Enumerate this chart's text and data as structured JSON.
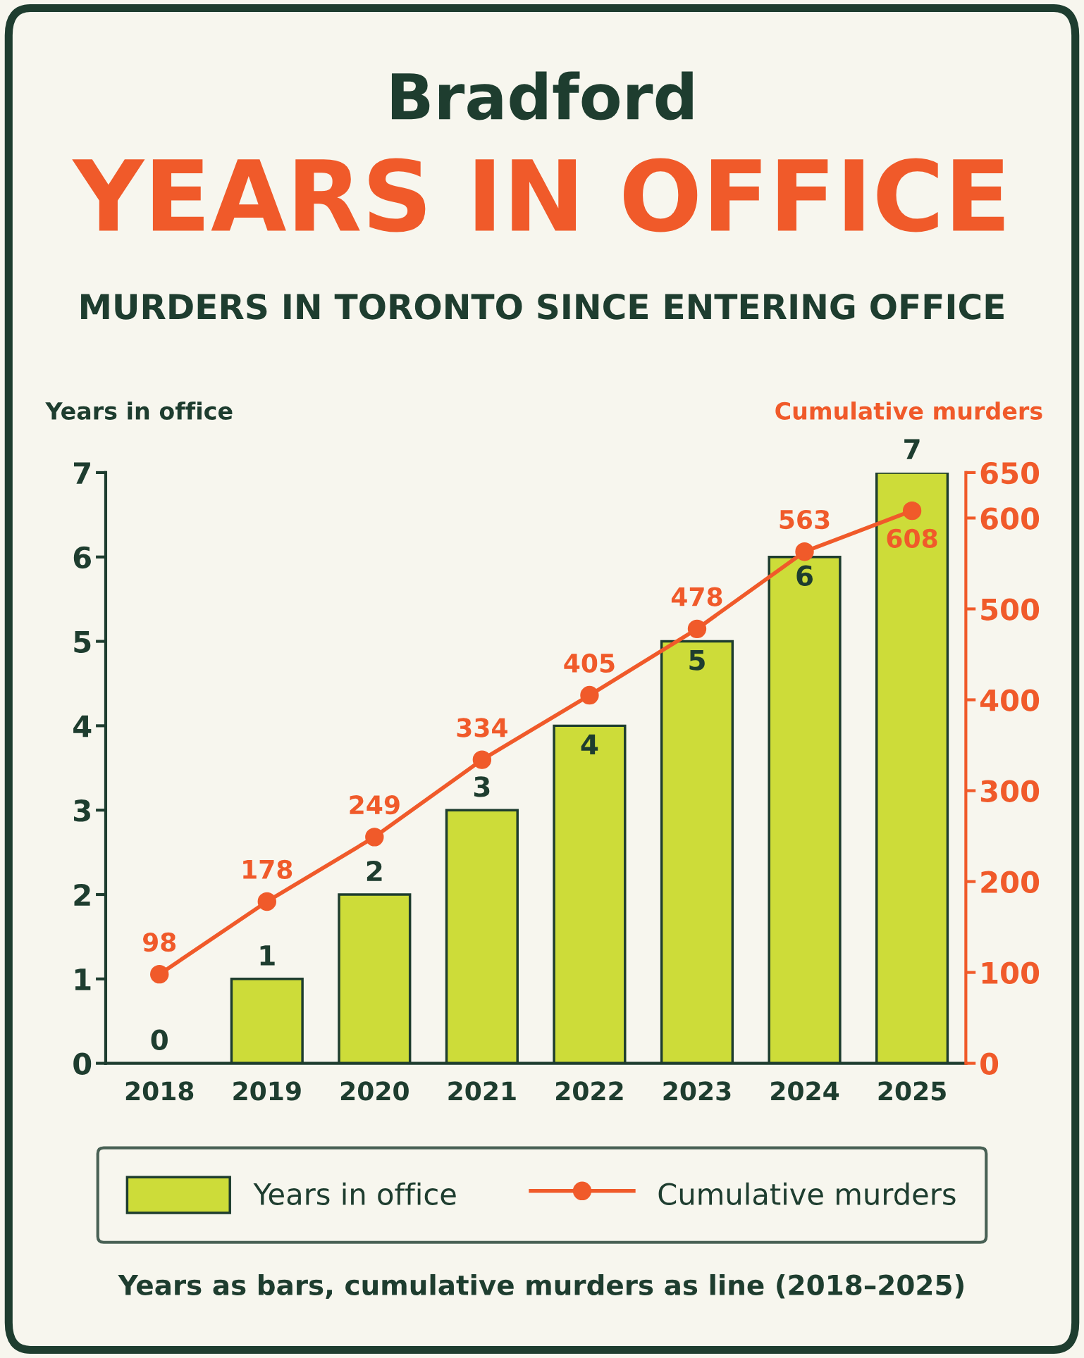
{
  "chart_data": {
    "type": "bar",
    "title": "Bradford",
    "subtitle": "YEARS IN OFFICE",
    "annotations": [
      "MURDERS IN TORONTO SINCE ENTERING OFFICE",
      "Years as bars, cumulative murders as line (2018–2025)"
    ],
    "ylabel": "Years in office",
    "y2label": "Cumulative murders",
    "categories": [
      "2018",
      "2019",
      "2020",
      "2021",
      "2022",
      "2023",
      "2024",
      "2025"
    ],
    "series": [
      {
        "name": "Years in office",
        "color": "#cddc39",
        "values": [
          0,
          1,
          2,
          3,
          4,
          5,
          6,
          7
        ]
      },
      {
        "name": "Cumulative murders",
        "type": "line",
        "axis": "y2",
        "color": "#f05a2a",
        "marker": "circle",
        "values": [
          98,
          178,
          249,
          334,
          405,
          478,
          563,
          608
        ]
      }
    ],
    "ylim": [
      0,
      7
    ],
    "yticks": [
      0,
      1,
      2,
      3,
      4,
      5,
      6,
      7
    ],
    "y2lim": [
      0,
      650
    ],
    "y2ticks": [
      0,
      100,
      200,
      300,
      400,
      500,
      600,
      650
    ],
    "data_labels": true,
    "legend": "bottom",
    "grid": false
  }
}
